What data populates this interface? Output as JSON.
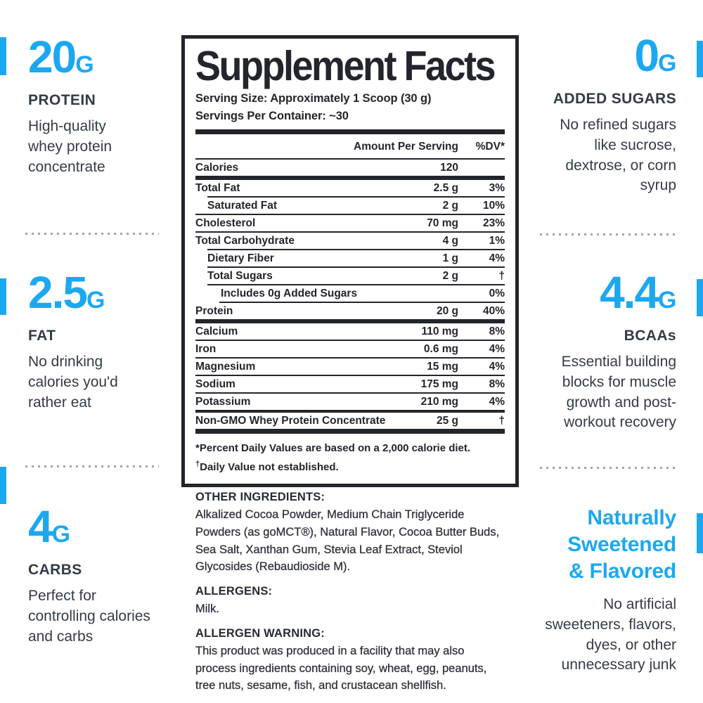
{
  "colors": {
    "accent_blue": "#1CA8F1",
    "panel_ink": "#22252C",
    "side_text": "#333B48"
  },
  "left_column": {
    "sections": [
      {
        "value": "20",
        "unit": "G",
        "label": "PROTEIN",
        "description": "High-quality\nwhey protein\nconcentrate"
      },
      {
        "value": "2.5",
        "unit": "G",
        "label": "FAT",
        "description": "No drinking\ncalories you'd\nrather eat"
      },
      {
        "value": "4",
        "unit": "G",
        "label": "CARBS",
        "description": "Perfect for\ncontrolling calories\nand carbs"
      }
    ]
  },
  "right_column": {
    "sections": [
      {
        "value": "0",
        "unit": "G",
        "label": "ADDED SUGARS",
        "description": "No refined sugars\nlike sucrose,\ndextrose, or corn\nsyrup"
      },
      {
        "value": "4.4",
        "unit": "G",
        "label": "BCAAs",
        "description": "Essential building\nblocks for muscle\ngrowth and post-\nworkout recovery"
      },
      {
        "heading": "Naturally\nSweetened\n& Flavored",
        "description": "No artificial\nsweeteners, flavors,\ndyes, or other\nunnecessary junk"
      }
    ]
  },
  "supplement_facts": {
    "title": "Supplement Facts",
    "serving_size": "Serving Size: Approximately 1 Scoop (30 g)",
    "servings_per_container": "Servings Per Container: ~30",
    "columns": {
      "amount": "Amount Per Serving",
      "dv": "%DV*"
    },
    "rows": [
      {
        "name": "Calories",
        "amount": "120",
        "dv": "",
        "indent": 0,
        "sep": "thick",
        "sep_indent": 0
      },
      {
        "name": "Total Fat",
        "amount": "2.5 g",
        "dv": "3%",
        "indent": 0,
        "sep": "thin",
        "sep_indent": 1
      },
      {
        "name": "Saturated Fat",
        "amount": "2 g",
        "dv": "10%",
        "indent": 1,
        "sep": "thin",
        "sep_indent": 0
      },
      {
        "name": "Cholesterol",
        "amount": "70 mg",
        "dv": "23%",
        "indent": 0,
        "sep": "thin",
        "sep_indent": 0
      },
      {
        "name": "Total Carbohydrate",
        "amount": "4 g",
        "dv": "1%",
        "indent": 0,
        "sep": "thin",
        "sep_indent": 1
      },
      {
        "name": "Dietary Fiber",
        "amount": "1 g",
        "dv": "4%",
        "indent": 1,
        "sep": "thin",
        "sep_indent": 1
      },
      {
        "name": "Total Sugars",
        "amount": "2 g",
        "dv": "†",
        "indent": 1,
        "sep": "thin",
        "sep_indent": 1
      },
      {
        "name": "Includes 0g Added Sugars",
        "amount": "",
        "dv": "0%",
        "indent": 2,
        "sep": "thin",
        "sep_indent": 2
      },
      {
        "name": "Protein",
        "amount": "20 g",
        "dv": "40%",
        "indent": 0,
        "sep": "thick",
        "sep_indent": 0
      },
      {
        "name": "Calcium",
        "amount": "110 mg",
        "dv": "8%",
        "indent": 0,
        "sep": "thin",
        "sep_indent": 0
      },
      {
        "name": "Iron",
        "amount": "0.6 mg",
        "dv": "4%",
        "indent": 0,
        "sep": "thin",
        "sep_indent": 0
      },
      {
        "name": "Magnesium",
        "amount": "15 mg",
        "dv": "4%",
        "indent": 0,
        "sep": "thin",
        "sep_indent": 0
      },
      {
        "name": "Sodium",
        "amount": "175 mg",
        "dv": "8%",
        "indent": 0,
        "sep": "thin",
        "sep_indent": 0
      },
      {
        "name": "Potassium",
        "amount": "210 mg",
        "dv": "4%",
        "indent": 0,
        "sep": "medium",
        "sep_indent": 0
      },
      {
        "name": "Non-GMO Whey Protein Concentrate",
        "amount": "25 g",
        "dv": "†",
        "indent": 0,
        "sep": "xthick",
        "sep_indent": 0
      }
    ],
    "footnotes": [
      {
        "marker": "*",
        "sup": false,
        "text": "Percent Daily Values are based on a 2,000 calorie diet."
      },
      {
        "marker": "†",
        "sup": true,
        "text": "Daily Value not established."
      }
    ]
  },
  "ingredients": {
    "other_heading": "OTHER INGREDIENTS:",
    "other_text": "Alkalized Cocoa Powder, Medium Chain Triglyceride\nPowders (as goMCT®), Natural Flavor, Cocoa Butter Buds,\nSea Salt, Xanthan Gum, Stevia Leaf Extract, Steviol\nGlycosides (Rebaudioside M).",
    "allergens_heading": "ALLERGENS:",
    "allergens_text": "Milk.",
    "warning_heading": "ALLERGEN WARNING:",
    "warning_text": "This product was produced in a facility that may also\nprocess ingredients containing soy, wheat, egg, peanuts,\ntree nuts, sesame, fish, and crustacean shellfish."
  }
}
